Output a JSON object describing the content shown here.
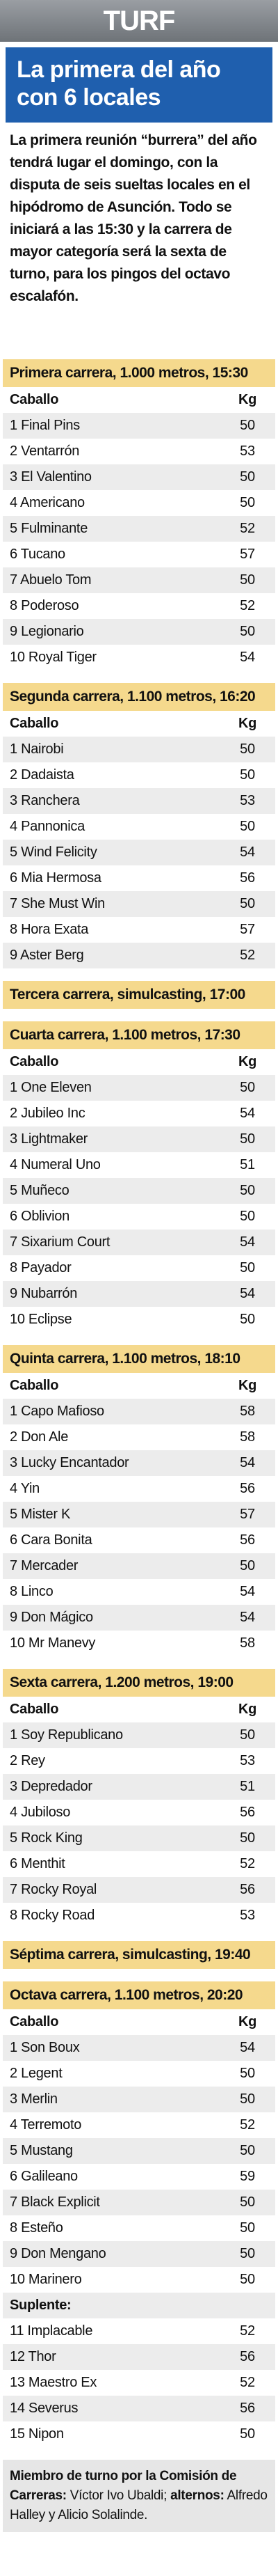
{
  "header": {
    "section": "TURF",
    "title": "La primera del año con 6 locales",
    "intro": "La primera reunión “burrera” del año tendrá lugar el domingo, con la disputa de seis sueltas locales en el hipódromo de Asunción. Todo se iniciará a las 15:30 y la carrera de mayor categoría será la sexta de turno, para los pingos del octavo escalafón."
  },
  "races": [
    {
      "title": "Primera carrera, 1.000 metros, 15:30",
      "columns": [
        "Caballo",
        "Kg"
      ],
      "rows": [
        [
          "1 Final Pins",
          50
        ],
        [
          "2 Ventarrón",
          53
        ],
        [
          "3 El Valentino",
          50
        ],
        [
          "4 Americano",
          50
        ],
        [
          "5 Fulminante",
          52
        ],
        [
          "6 Tucano",
          57
        ],
        [
          "7 Abuelo Tom",
          50
        ],
        [
          "8 Poderoso",
          52
        ],
        [
          "9 Legionario",
          50
        ],
        [
          "10 Royal Tiger",
          54
        ]
      ]
    },
    {
      "title": "Segunda carrera, 1.100 metros, 16:20",
      "columns": [
        "Caballo",
        "Kg"
      ],
      "rows": [
        [
          "1 Nairobi",
          50
        ],
        [
          "2 Dadaista",
          50
        ],
        [
          "3 Ranchera",
          53
        ],
        [
          "4 Pannonica",
          50
        ],
        [
          "5 Wind Felicity",
          54
        ],
        [
          "6 Mia Hermosa",
          56
        ],
        [
          "7 She Must Win",
          50
        ],
        [
          "8 Hora Exata",
          57
        ],
        [
          "9 Aster Berg",
          52
        ]
      ]
    },
    {
      "title": "Tercera carrera, simulcasting, 17:00"
    },
    {
      "title": "Cuarta carrera, 1.100 metros, 17:30",
      "columns": [
        "Caballo",
        "Kg"
      ],
      "rows": [
        [
          "1 One Eleven",
          50
        ],
        [
          "2 Jubileo Inc",
          54
        ],
        [
          "3 Lightmaker",
          50
        ],
        [
          "4 Numeral Uno",
          51
        ],
        [
          "5 Muñeco",
          50
        ],
        [
          "6 Oblivion",
          50
        ],
        [
          "7 Sixarium Court",
          54
        ],
        [
          "8 Payador",
          50
        ],
        [
          "9 Nubarrón",
          54
        ],
        [
          "10 Eclipse",
          50
        ]
      ]
    },
    {
      "title": "Quinta carrera, 1.100 metros, 18:10",
      "columns": [
        "Caballo",
        "Kg"
      ],
      "rows": [
        [
          "1 Capo Mafioso",
          58
        ],
        [
          "2 Don Ale",
          58
        ],
        [
          "3 Lucky Encantador",
          54
        ],
        [
          "4 Yin",
          56
        ],
        [
          "5 Mister K",
          57
        ],
        [
          "6 Cara Bonita",
          56
        ],
        [
          "7 Mercader",
          50
        ],
        [
          "8 Linco",
          54
        ],
        [
          "9 Don Mágico",
          54
        ],
        [
          "10 Mr Manevy",
          58
        ]
      ]
    },
    {
      "title": "Sexta carrera, 1.200 metros, 19:00",
      "columns": [
        "Caballo",
        "Kg"
      ],
      "rows": [
        [
          "1 Soy Republicano",
          50
        ],
        [
          "2 Rey",
          53
        ],
        [
          "3 Depredador",
          51
        ],
        [
          "4 Jubiloso",
          56
        ],
        [
          "5 Rock King",
          50
        ],
        [
          "6 Menthit",
          52
        ],
        [
          "7 Rocky Royal",
          56
        ],
        [
          "8 Rocky Road",
          53
        ]
      ]
    },
    {
      "title": "Séptima carrera, simulcasting, 19:40"
    },
    {
      "title": "Octava carrera, 1.100 metros, 20:20",
      "columns": [
        "Caballo",
        "Kg"
      ],
      "rows": [
        [
          "1 Son Boux",
          54
        ],
        [
          "2 Legent",
          50
        ],
        [
          "3 Merlin",
          50
        ],
        [
          "4 Terremoto",
          52
        ],
        [
          "5 Mustang",
          50
        ],
        [
          "6 Galileano",
          59
        ],
        [
          "7 Black Explicit",
          50
        ],
        [
          "8 Esteño",
          50
        ],
        [
          "9 Don Mengano",
          50
        ],
        [
          "10 Marinero",
          50
        ]
      ],
      "substitutes_label": "Suplente:",
      "substitutes": [
        [
          "11 Implacable",
          52
        ],
        [
          "12 Thor",
          56
        ],
        [
          "13 Maestro Ex",
          52
        ],
        [
          "14 Severus",
          56
        ],
        [
          "15 Nipon",
          50
        ]
      ]
    }
  ],
  "footer": {
    "lead": "Miembro de turno por la Comisión de Carreras:",
    "member": "Víctor Ivo Ubaldi;",
    "alt_lead": "alternos:",
    "alternates": "Alfredo Halley y Alicio Solalinde."
  }
}
